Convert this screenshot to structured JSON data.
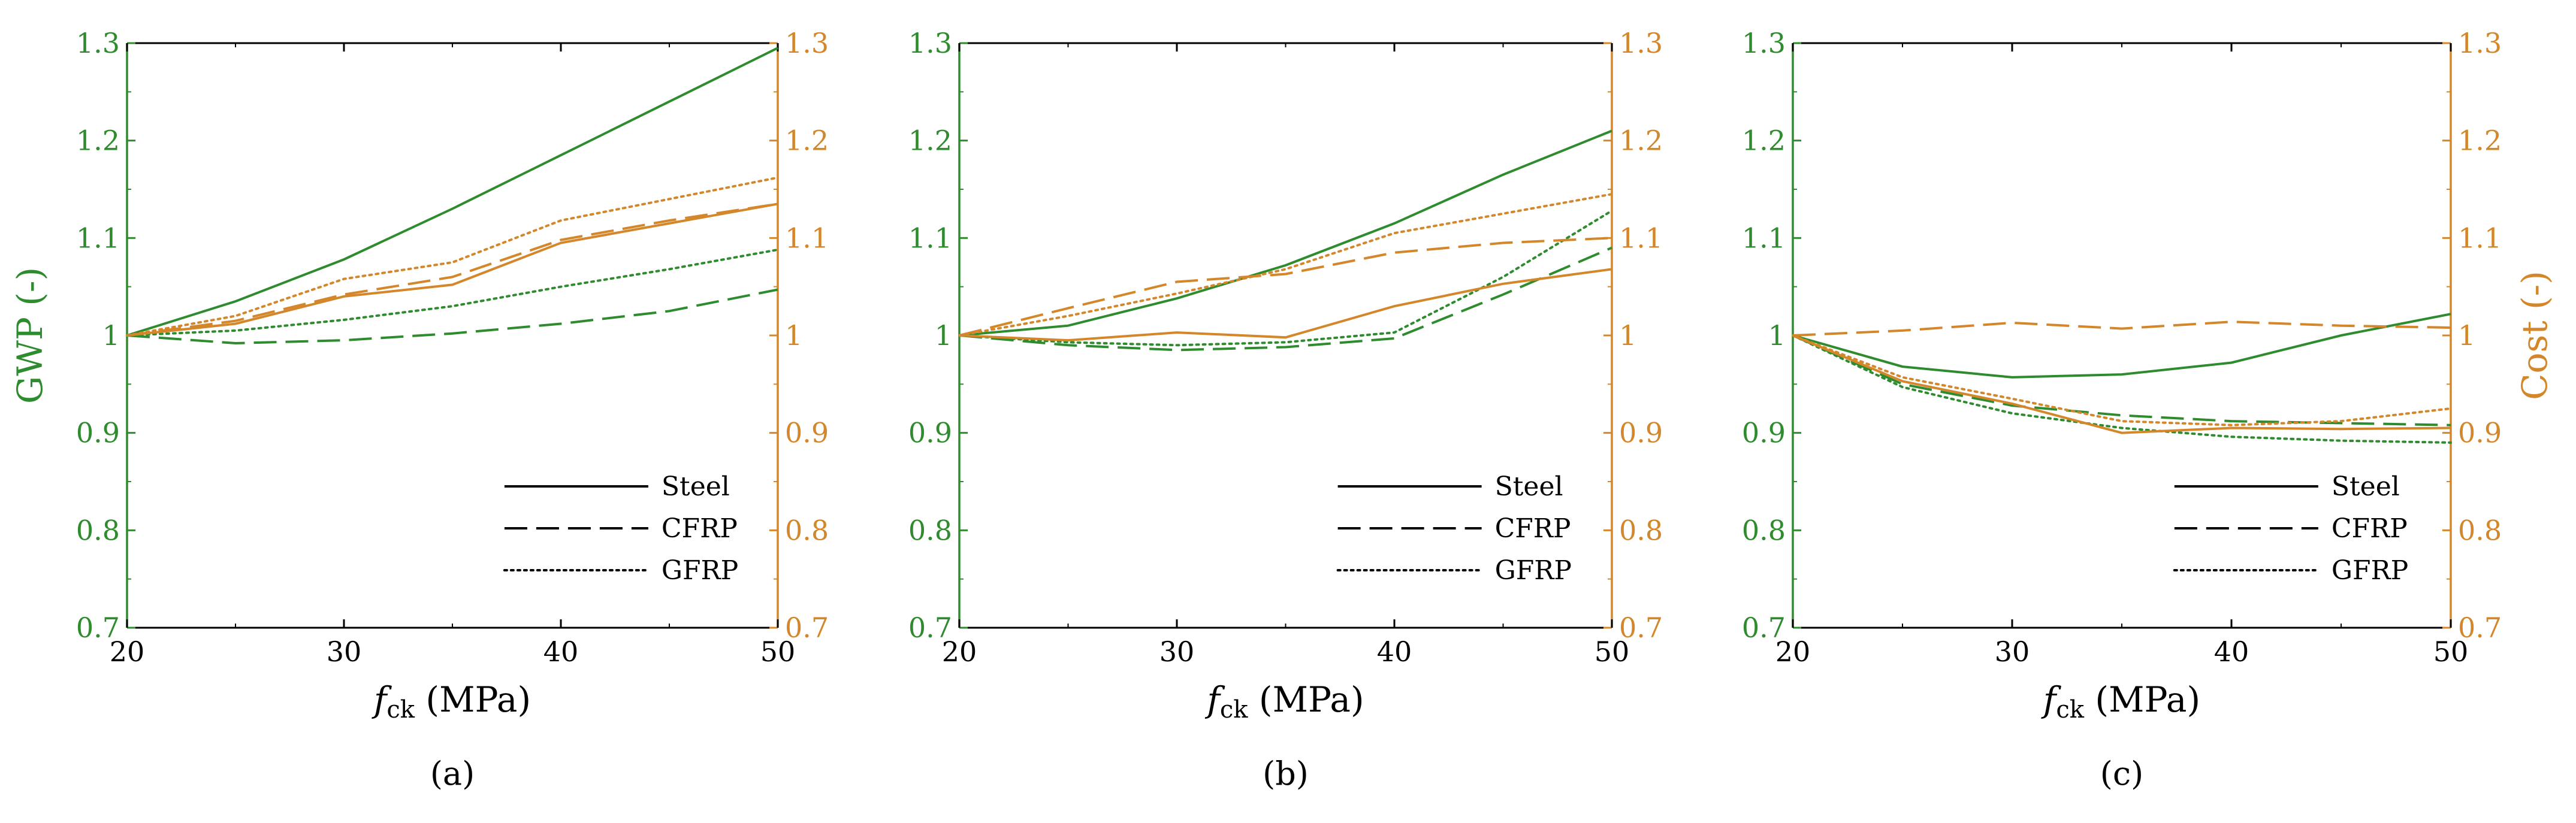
{
  "colors": {
    "gwp": "#2e8b2e",
    "cost": "#d4872a",
    "axis": "#000000"
  },
  "shared": {
    "x_ticks": [
      "20",
      "30",
      "40",
      "50"
    ],
    "y_ticks": [
      "0.7",
      "0.8",
      "0.9",
      "1",
      "1.1",
      "1.2",
      "1.3"
    ],
    "xlabel_main": "f",
    "xlabel_sub": "ck",
    "xlabel_units": " (MPa)",
    "ylabel_left": "GWP (-)",
    "ylabel_right": "Cost (-)"
  },
  "chart_data": [
    {
      "type": "line",
      "panel_label": "(a)",
      "x": [
        20,
        25,
        30,
        35,
        40,
        45,
        50
      ],
      "xlim": [
        20,
        50
      ],
      "ylim": [
        0.7,
        1.3
      ],
      "xlabel": "f_ck (MPa)",
      "ylabel_left": "GWP (-)",
      "ylabel_right": "Cost (-)",
      "legend": {
        "position": "lower-right",
        "entries": [
          "Steel",
          "CFRP",
          "GFRP"
        ]
      },
      "series": [
        {
          "name": "Steel",
          "metric": "GWP",
          "style": "solid",
          "values": [
            1.0,
            1.035,
            1.078,
            1.13,
            1.185,
            1.24,
            1.295
          ]
        },
        {
          "name": "CFRP",
          "metric": "GWP",
          "style": "dashed",
          "values": [
            1.0,
            0.992,
            0.995,
            1.002,
            1.012,
            1.025,
            1.047
          ]
        },
        {
          "name": "GFRP",
          "metric": "GWP",
          "style": "dotted",
          "values": [
            1.0,
            1.005,
            1.016,
            1.03,
            1.05,
            1.068,
            1.088
          ]
        },
        {
          "name": "Steel",
          "metric": "Cost",
          "style": "solid",
          "values": [
            1.0,
            1.012,
            1.04,
            1.052,
            1.095,
            1.115,
            1.135
          ]
        },
        {
          "name": "CFRP",
          "metric": "Cost",
          "style": "dashed",
          "values": [
            1.0,
            1.015,
            1.042,
            1.06,
            1.098,
            1.118,
            1.135
          ]
        },
        {
          "name": "GFRP",
          "metric": "Cost",
          "style": "dotted",
          "values": [
            1.0,
            1.02,
            1.058,
            1.075,
            1.118,
            1.14,
            1.162
          ]
        }
      ]
    },
    {
      "type": "line",
      "panel_label": "(b)",
      "x": [
        20,
        25,
        30,
        35,
        40,
        45,
        50
      ],
      "xlim": [
        20,
        50
      ],
      "ylim": [
        0.7,
        1.3
      ],
      "xlabel": "f_ck (MPa)",
      "ylabel_left": "GWP (-)",
      "ylabel_right": "Cost (-)",
      "legend": {
        "position": "lower-right",
        "entries": [
          "Steel",
          "CFRP",
          "GFRP"
        ]
      },
      "series": [
        {
          "name": "Steel",
          "metric": "GWP",
          "style": "solid",
          "values": [
            1.0,
            1.01,
            1.038,
            1.072,
            1.115,
            1.165,
            1.21
          ]
        },
        {
          "name": "CFRP",
          "metric": "GWP",
          "style": "dashed",
          "values": [
            1.0,
            0.99,
            0.985,
            0.988,
            0.997,
            1.042,
            1.09
          ]
        },
        {
          "name": "GFRP",
          "metric": "GWP",
          "style": "dotted",
          "values": [
            1.0,
            0.993,
            0.99,
            0.993,
            1.003,
            1.06,
            1.128
          ]
        },
        {
          "name": "Steel",
          "metric": "Cost",
          "style": "solid",
          "values": [
            1.0,
            0.995,
            1.003,
            0.998,
            1.03,
            1.053,
            1.068
          ]
        },
        {
          "name": "CFRP",
          "metric": "Cost",
          "style": "dashed",
          "values": [
            1.0,
            1.028,
            1.055,
            1.063,
            1.085,
            1.095,
            1.1
          ]
        },
        {
          "name": "GFRP",
          "metric": "Cost",
          "style": "dotted",
          "values": [
            1.0,
            1.02,
            1.043,
            1.068,
            1.105,
            1.125,
            1.145
          ]
        }
      ]
    },
    {
      "type": "line",
      "panel_label": "(c)",
      "x": [
        20,
        25,
        30,
        35,
        40,
        45,
        50
      ],
      "xlim": [
        20,
        50
      ],
      "ylim": [
        0.7,
        1.3
      ],
      "xlabel": "f_ck (MPa)",
      "ylabel_left": "GWP (-)",
      "ylabel_right": "Cost (-)",
      "legend": {
        "position": "lower-right",
        "entries": [
          "Steel",
          "CFRP",
          "GFRP"
        ]
      },
      "series": [
        {
          "name": "Steel",
          "metric": "GWP",
          "style": "solid",
          "values": [
            1.0,
            0.968,
            0.957,
            0.96,
            0.972,
            1.0,
            1.022
          ]
        },
        {
          "name": "CFRP",
          "metric": "GWP",
          "style": "dashed",
          "values": [
            1.0,
            0.95,
            0.928,
            0.918,
            0.912,
            0.91,
            0.908
          ]
        },
        {
          "name": "GFRP",
          "metric": "GWP",
          "style": "dotted",
          "values": [
            1.0,
            0.947,
            0.92,
            0.905,
            0.896,
            0.892,
            0.89
          ]
        },
        {
          "name": "Steel",
          "metric": "Cost",
          "style": "solid",
          "values": [
            1.0,
            0.953,
            0.93,
            0.9,
            0.905,
            0.904,
            0.905
          ]
        },
        {
          "name": "CFRP",
          "metric": "Cost",
          "style": "dashed",
          "values": [
            1.0,
            1.005,
            1.013,
            1.007,
            1.014,
            1.01,
            1.008
          ]
        },
        {
          "name": "GFRP",
          "metric": "Cost",
          "style": "dotted",
          "values": [
            1.0,
            0.957,
            0.935,
            0.912,
            0.908,
            0.912,
            0.925
          ]
        }
      ]
    }
  ]
}
